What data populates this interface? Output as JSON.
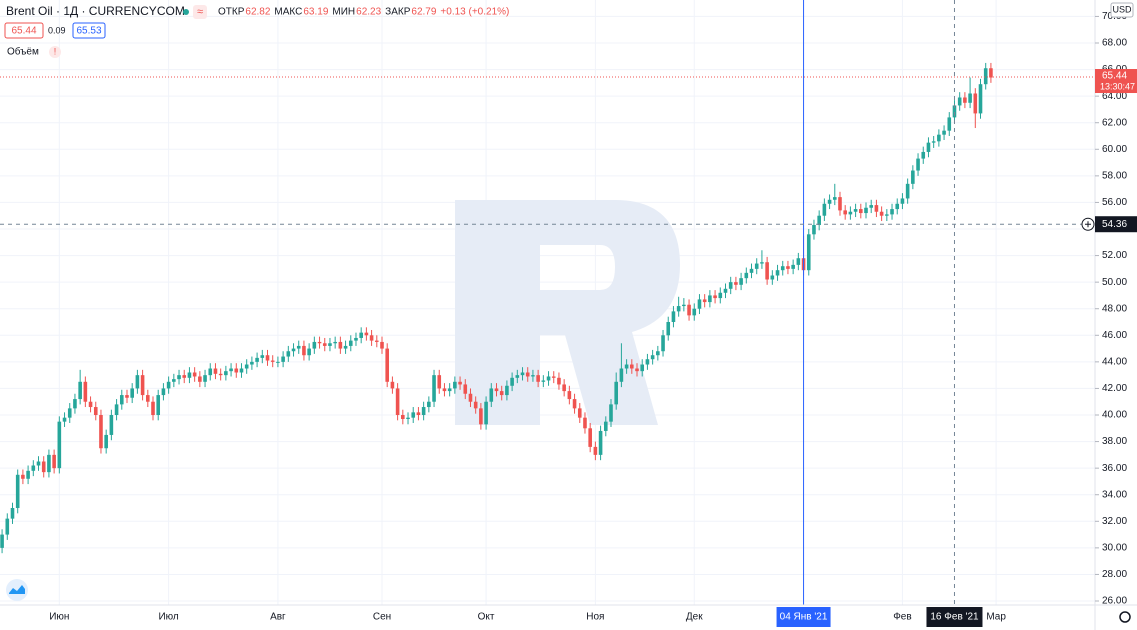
{
  "ui": {
    "symbol": "Brent Oil · 1Д · CURRENCYCOM",
    "ohlc": [
      [
        "ОТКР",
        "62.82"
      ],
      [
        "МАКС",
        "63.19"
      ],
      [
        "МИН",
        "62.23"
      ],
      [
        "ЗАКР",
        "62.79"
      ]
    ],
    "change": "+0.13 (+0.21%)",
    "bid": "65.44",
    "spread": "0.09",
    "ask": "65.53",
    "volume": "Объём",
    "currency": "USD"
  },
  "chart_data": {
    "type": "candlestick",
    "up_color": "#26a69a",
    "down_color": "#ef5350",
    "grid": true,
    "ylim": [
      26,
      70.2
    ],
    "xlim": [
      -0.4,
      210
    ],
    "yticks": [
      {
        "value": 26,
        "label": "26.00"
      },
      {
        "value": 28,
        "label": "28.00"
      },
      {
        "value": 30,
        "label": "30.00"
      },
      {
        "value": 32,
        "label": "32.00"
      },
      {
        "value": 34,
        "label": "34.00"
      },
      {
        "value": 36,
        "label": "36.00"
      },
      {
        "value": 38,
        "label": "38.00"
      },
      {
        "value": 40,
        "label": "40.00"
      },
      {
        "value": 42,
        "label": "42.00"
      },
      {
        "value": 44,
        "label": "44.00"
      },
      {
        "value": 46,
        "label": "46.00"
      },
      {
        "value": 48,
        "label": "48.00"
      },
      {
        "value": 50,
        "label": "50.00"
      },
      {
        "value": 52,
        "label": "52.00"
      },
      {
        "value": 54,
        "label": "54.00"
      },
      {
        "value": 56,
        "label": "56.00"
      },
      {
        "value": 58,
        "label": "58.00"
      },
      {
        "value": 60,
        "label": "60.00"
      },
      {
        "value": 62,
        "label": "62.00"
      },
      {
        "value": 64,
        "label": "64.00"
      },
      {
        "value": 66,
        "label": "66.00"
      },
      {
        "value": 68,
        "label": "68.00"
      },
      {
        "value": 70,
        "label": "70.00"
      }
    ],
    "xticks": [
      {
        "value": 11,
        "label": "Июн"
      },
      {
        "value": 32,
        "label": "Июл"
      },
      {
        "value": 53,
        "label": "Авг"
      },
      {
        "value": 73,
        "label": "Сен"
      },
      {
        "value": 93,
        "label": "Окт"
      },
      {
        "value": 114,
        "label": "Ноя"
      },
      {
        "value": 133,
        "label": "Дек"
      },
      {
        "value": 173,
        "label": "Фев"
      },
      {
        "value": 191,
        "label": "Мар"
      }
    ],
    "vline": {
      "index": 154,
      "label": "04 Янв '21",
      "color": "#2962ff"
    },
    "crosshair": {
      "index": 183,
      "price": 54.36,
      "label": "16 Фев '21"
    },
    "last_price": 65.44,
    "last_time": "13:30:47",
    "candles": [
      [
        30,
        31.4,
        29.6,
        31
      ],
      [
        31,
        32.6,
        30.6,
        32.2
      ],
      [
        32.2,
        33.4,
        31.8,
        33
      ],
      [
        33,
        35.9,
        32.6,
        35.5
      ],
      [
        35.5,
        35.9,
        34.8,
        35.2
      ],
      [
        35.2,
        36.2,
        34.8,
        35.8
      ],
      [
        35.8,
        36.6,
        35.4,
        36.2
      ],
      [
        36.2,
        36.9,
        35.8,
        36.5
      ],
      [
        36.5,
        36.9,
        35.3,
        35.7
      ],
      [
        35.7,
        37.4,
        35.3,
        37
      ],
      [
        37,
        37.4,
        35.6,
        36
      ],
      [
        36,
        39.9,
        35.6,
        39.5
      ],
      [
        39.5,
        40.2,
        39.1,
        39.8
      ],
      [
        39.8,
        40.9,
        39.4,
        40.5
      ],
      [
        40.5,
        41.6,
        40.1,
        41.2
      ],
      [
        41.2,
        43.4,
        40.8,
        42.5
      ],
      [
        42.5,
        42.9,
        40.6,
        41
      ],
      [
        41,
        41.4,
        40.2,
        40.6
      ],
      [
        40.6,
        41,
        39.6,
        40
      ],
      [
        40,
        40.4,
        37.1,
        37.5
      ],
      [
        37.5,
        38.9,
        37.1,
        38.5
      ],
      [
        38.5,
        40.4,
        38.1,
        40
      ],
      [
        40,
        41.2,
        39.6,
        40.8
      ],
      [
        40.8,
        41.9,
        40.4,
        41.5
      ],
      [
        41.5,
        41.9,
        40.9,
        41.3
      ],
      [
        41.3,
        42.4,
        40.9,
        42
      ],
      [
        42,
        43.4,
        41.6,
        43
      ],
      [
        43,
        43.4,
        41.1,
        41.5
      ],
      [
        41.5,
        41.9,
        40.6,
        41
      ],
      [
        41,
        41.4,
        39.6,
        40
      ],
      [
        40,
        41.9,
        39.6,
        41.5
      ],
      [
        41.5,
        42.4,
        41.1,
        42
      ],
      [
        42,
        42.9,
        41.6,
        42.5
      ],
      [
        42.5,
        43.1,
        42.1,
        42.7
      ],
      [
        42.7,
        43.4,
        42.3,
        43
      ],
      [
        43,
        43.4,
        42.4,
        42.8
      ],
      [
        42.8,
        43.6,
        42.4,
        43.2
      ],
      [
        43.2,
        43.6,
        42.5,
        42.9
      ],
      [
        42.9,
        43.3,
        42.1,
        42.5
      ],
      [
        42.5,
        43.4,
        42.1,
        43
      ],
      [
        43,
        43.9,
        42.6,
        43.5
      ],
      [
        43.5,
        43.9,
        42.7,
        43.1
      ],
      [
        43.1,
        43.5,
        42.6,
        43
      ],
      [
        43,
        43.7,
        42.6,
        43.3
      ],
      [
        43.3,
        43.9,
        42.9,
        43.5
      ],
      [
        43.5,
        43.9,
        42.8,
        43.2
      ],
      [
        43.2,
        43.9,
        42.8,
        43.5
      ],
      [
        43.5,
        44.2,
        43.1,
        43.8
      ],
      [
        43.8,
        44.4,
        43.4,
        44
      ],
      [
        44,
        44.7,
        43.6,
        44.3
      ],
      [
        44.3,
        44.9,
        43.9,
        44.5
      ],
      [
        44.5,
        44.9,
        43.7,
        44.1
      ],
      [
        44.1,
        44.5,
        43.6,
        44
      ],
      [
        44,
        44.4,
        43.6,
        44
      ],
      [
        44,
        44.8,
        43.6,
        44.4
      ],
      [
        44.4,
        45.2,
        44,
        44.8
      ],
      [
        44.8,
        45.4,
        44.4,
        45
      ],
      [
        45,
        45.6,
        44.6,
        45.2
      ],
      [
        45.2,
        45.6,
        44.1,
        44.5
      ],
      [
        44.5,
        45.4,
        44.1,
        45
      ],
      [
        45,
        45.9,
        44.6,
        45.5
      ],
      [
        45.5,
        45.9,
        45,
        45.4
      ],
      [
        45.4,
        45.8,
        44.8,
        45.2
      ],
      [
        45.2,
        45.8,
        44.8,
        45.4
      ],
      [
        45.4,
        45.9,
        45,
        45.5
      ],
      [
        45.5,
        45.9,
        44.6,
        45
      ],
      [
        45,
        45.6,
        44.6,
        45.2
      ],
      [
        45.2,
        46,
        44.8,
        45.6
      ],
      [
        45.6,
        46.2,
        45.2,
        45.8
      ],
      [
        45.8,
        46.6,
        45.4,
        46.2
      ],
      [
        46.2,
        46.6,
        45.6,
        46
      ],
      [
        46,
        46.4,
        45.2,
        45.6
      ],
      [
        45.6,
        46,
        45.1,
        45.5
      ],
      [
        45.5,
        45.9,
        44.6,
        45
      ],
      [
        45,
        45.4,
        42.1,
        42.5
      ],
      [
        42.5,
        42.9,
        41.6,
        42
      ],
      [
        42,
        42.4,
        39.6,
        40
      ],
      [
        40,
        40.4,
        39.3,
        39.7
      ],
      [
        39.7,
        40.2,
        39.3,
        39.8
      ],
      [
        39.8,
        40.6,
        39.4,
        40.2
      ],
      [
        40.2,
        40.6,
        39.6,
        40
      ],
      [
        40,
        41,
        39.6,
        40.6
      ],
      [
        40.6,
        41.4,
        40.2,
        41
      ],
      [
        41,
        43.4,
        40.6,
        43
      ],
      [
        43,
        43.4,
        41.6,
        42
      ],
      [
        42,
        42.4,
        41.4,
        41.8
      ],
      [
        41.8,
        42.4,
        41.4,
        42
      ],
      [
        42,
        42.9,
        41.6,
        42.5
      ],
      [
        42.5,
        42.9,
        41.9,
        42.3
      ],
      [
        42.3,
        42.7,
        41.2,
        41.6
      ],
      [
        41.6,
        42,
        40.6,
        41
      ],
      [
        41,
        41.4,
        40.1,
        40.5
      ],
      [
        40.5,
        40.9,
        38.9,
        39.3
      ],
      [
        39.3,
        41.4,
        38.9,
        41
      ],
      [
        41,
        42.4,
        40.6,
        42
      ],
      [
        42,
        42.4,
        41.4,
        41.8
      ],
      [
        41.8,
        42.2,
        41.1,
        41.5
      ],
      [
        41.5,
        42.6,
        41.1,
        42.2
      ],
      [
        42.2,
        43.2,
        41.8,
        42.8
      ],
      [
        42.8,
        43.4,
        42.4,
        43
      ],
      [
        43,
        43.6,
        42.6,
        43.2
      ],
      [
        43.2,
        43.6,
        42.5,
        42.9
      ],
      [
        42.9,
        43.4,
        42.5,
        43
      ],
      [
        43,
        43.4,
        42.1,
        42.5
      ],
      [
        42.5,
        43,
        42.1,
        42.6
      ],
      [
        42.6,
        43.3,
        42.2,
        42.9
      ],
      [
        42.9,
        43.3,
        42.4,
        42.8
      ],
      [
        42.8,
        43.2,
        41.9,
        42.3
      ],
      [
        42.3,
        42.7,
        41.4,
        41.8
      ],
      [
        41.8,
        42.2,
        40.8,
        41.2
      ],
      [
        41.2,
        41.6,
        40.1,
        40.5
      ],
      [
        40.5,
        40.9,
        39.4,
        39.8
      ],
      [
        39.8,
        40.2,
        38.6,
        39
      ],
      [
        39,
        39.4,
        37.2,
        37.6
      ],
      [
        37.6,
        38,
        36.6,
        37
      ],
      [
        37,
        39.2,
        36.6,
        38.8
      ],
      [
        38.8,
        39.9,
        38.4,
        39.5
      ],
      [
        39.5,
        41.2,
        39.1,
        40.8
      ],
      [
        40.8,
        43.2,
        40.4,
        42.5
      ],
      [
        42.5,
        45.4,
        42.1,
        43.5
      ],
      [
        43.5,
        44.2,
        43.1,
        43.8
      ],
      [
        43.8,
        44.2,
        43.1,
        43.5
      ],
      [
        43.5,
        43.9,
        42.9,
        43.3
      ],
      [
        43.3,
        44.2,
        42.9,
        43.8
      ],
      [
        43.8,
        44.6,
        43.4,
        44.2
      ],
      [
        44.2,
        44.9,
        43.8,
        44.5
      ],
      [
        44.5,
        45.2,
        44.1,
        44.8
      ],
      [
        44.8,
        46.4,
        44.4,
        46
      ],
      [
        46,
        47.4,
        45.6,
        47
      ],
      [
        47,
        48.2,
        46.6,
        47.8
      ],
      [
        47.8,
        48.9,
        47.4,
        48.2
      ],
      [
        48.2,
        48.8,
        47.8,
        48.3
      ],
      [
        48.3,
        48.7,
        47.1,
        47.5
      ],
      [
        47.5,
        48.4,
        47.1,
        48
      ],
      [
        48,
        49.1,
        47.6,
        48.7
      ],
      [
        48.7,
        49.1,
        48.1,
        48.5
      ],
      [
        48.5,
        49.4,
        48.1,
        49
      ],
      [
        49,
        49.4,
        48.4,
        48.8
      ],
      [
        48.8,
        49.6,
        48.4,
        49.2
      ],
      [
        49.2,
        49.9,
        48.8,
        49.5
      ],
      [
        49.5,
        50.4,
        49.1,
        50
      ],
      [
        50,
        50.4,
        49.4,
        49.8
      ],
      [
        49.8,
        50.7,
        49.4,
        50.3
      ],
      [
        50.3,
        51.1,
        49.9,
        50.7
      ],
      [
        50.7,
        51.4,
        50.3,
        51
      ],
      [
        51,
        51.8,
        50.6,
        51.4
      ],
      [
        51.4,
        52.4,
        51,
        51.5
      ],
      [
        51.5,
        51.9,
        49.8,
        50.2
      ],
      [
        50.2,
        50.9,
        49.8,
        50.5
      ],
      [
        50.5,
        51.3,
        50.1,
        50.9
      ],
      [
        50.9,
        51.6,
        50.5,
        51.2
      ],
      [
        51.2,
        51.6,
        50.6,
        51
      ],
      [
        51,
        51.7,
        50.6,
        51.3
      ],
      [
        51.3,
        52.2,
        50.9,
        51.8
      ],
      [
        51.8,
        53.5,
        50.5,
        50.9
      ],
      [
        50.9,
        54,
        50.5,
        53.6
      ],
      [
        53.6,
        54.7,
        53.2,
        54.3
      ],
      [
        54.3,
        55.4,
        53.9,
        55
      ],
      [
        55,
        56.3,
        54.6,
        55.9
      ],
      [
        55.9,
        56.6,
        55.5,
        56.2
      ],
      [
        56.2,
        57.4,
        55.8,
        56.4
      ],
      [
        56.4,
        56.8,
        55,
        55.4
      ],
      [
        55.4,
        55.8,
        54.7,
        55.1
      ],
      [
        55.1,
        55.7,
        54.7,
        55.3
      ],
      [
        55.3,
        55.9,
        54.9,
        55.5
      ],
      [
        55.5,
        55.9,
        54.8,
        55.2
      ],
      [
        55.2,
        56,
        54.8,
        55.6
      ],
      [
        55.6,
        56.2,
        55.2,
        55.8
      ],
      [
        55.8,
        56.2,
        54.9,
        55.3
      ],
      [
        55.3,
        55.7,
        54.6,
        55
      ],
      [
        55,
        55.5,
        54.6,
        55.1
      ],
      [
        55.1,
        55.9,
        54.7,
        55.5
      ],
      [
        55.5,
        56.3,
        55.1,
        55.9
      ],
      [
        55.9,
        56.7,
        55.5,
        56.3
      ],
      [
        56.3,
        57.8,
        55.9,
        57.4
      ],
      [
        57.4,
        58.8,
        57,
        58.4
      ],
      [
        58.4,
        59.7,
        58,
        59.3
      ],
      [
        59.3,
        60.2,
        58.9,
        59.8
      ],
      [
        59.8,
        60.9,
        59.4,
        60.5
      ],
      [
        60.5,
        61,
        60.1,
        60.6
      ],
      [
        60.6,
        61.5,
        60.2,
        61.1
      ],
      [
        61.1,
        61.8,
        60.7,
        61.4
      ],
      [
        61.4,
        62.8,
        61,
        62.4
      ],
      [
        62.4,
        63.7,
        62,
        63.3
      ],
      [
        63.3,
        64.3,
        62.9,
        63.9
      ],
      [
        63.9,
        64.3,
        63.1,
        63.5
      ],
      [
        63.5,
        65.4,
        63.1,
        64.2
      ],
      [
        64.2,
        64.6,
        61.6,
        62.7
      ],
      [
        62.7,
        65.3,
        62.3,
        64.9
      ],
      [
        64.9,
        66.5,
        64.5,
        66.1
      ],
      [
        66.1,
        66.5,
        65,
        65.4
      ]
    ]
  }
}
